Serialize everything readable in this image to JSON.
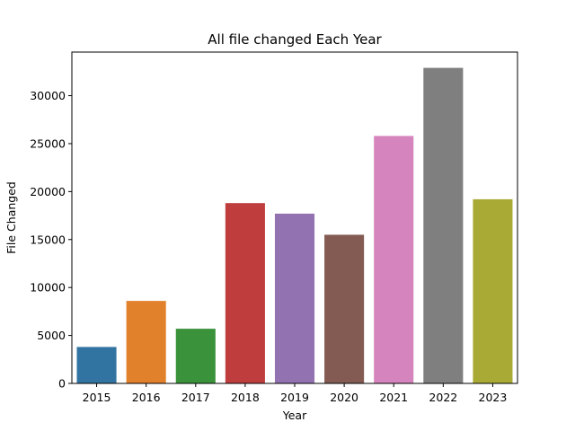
{
  "chart_data": {
    "type": "bar",
    "title": "All file changed Each Year",
    "xlabel": "Year",
    "ylabel": "File Changed",
    "categories": [
      "2015",
      "2016",
      "2017",
      "2018",
      "2019",
      "2020",
      "2021",
      "2022",
      "2023"
    ],
    "values": [
      3800,
      8600,
      5700,
      18800,
      17700,
      15500,
      25800,
      32900,
      19200
    ],
    "colors": [
      "#3274a1",
      "#e1812c",
      "#3a923a",
      "#c03d3e",
      "#9372b2",
      "#845b53",
      "#d684bd",
      "#7f7f7f",
      "#a9aa35"
    ],
    "ylim": [
      0,
      34545
    ],
    "yticks": [
      0,
      5000,
      10000,
      15000,
      20000,
      25000,
      30000
    ],
    "grid": false,
    "legend": "none"
  }
}
